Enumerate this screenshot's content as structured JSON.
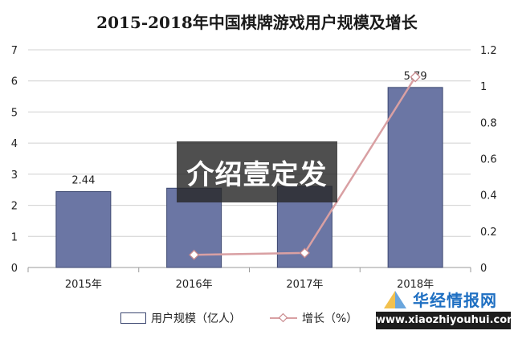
{
  "chart_data": {
    "type": "bar",
    "title": "2015-2018年中国棋牌游戏用户规模及增长",
    "categories": [
      "2015年",
      "2016年",
      "2017年",
      "2018年"
    ],
    "series": [
      {
        "name": "用户规模（亿人）",
        "type": "bar",
        "axis": "left",
        "values": [
          2.44,
          2.55,
          2.61,
          5.79
        ],
        "data_labels": [
          "2.44",
          null,
          null,
          "5.79"
        ],
        "color": "#6b76a4"
      },
      {
        "name": "增长（%）",
        "type": "line",
        "axis": "right",
        "values": [
          null,
          0.07,
          0.08,
          1.05
        ],
        "color": "#d9a0a3"
      }
    ],
    "y_left": {
      "min": 0,
      "max": 7,
      "ticks": [
        "0",
        "1",
        "2",
        "3",
        "4",
        "5",
        "6",
        "7"
      ]
    },
    "y_right": {
      "min": 0,
      "max": 1.2,
      "ticks": [
        "0",
        "0.2",
        "0.4",
        "0.6",
        "0.8",
        "1",
        "1.2"
      ]
    },
    "grid": true,
    "legend_position": "bottom"
  },
  "watermark": {
    "text": "介绍壹定发"
  },
  "brand": {
    "name": "华经情报网",
    "url": "www.xiaozhiyouhui.com"
  }
}
